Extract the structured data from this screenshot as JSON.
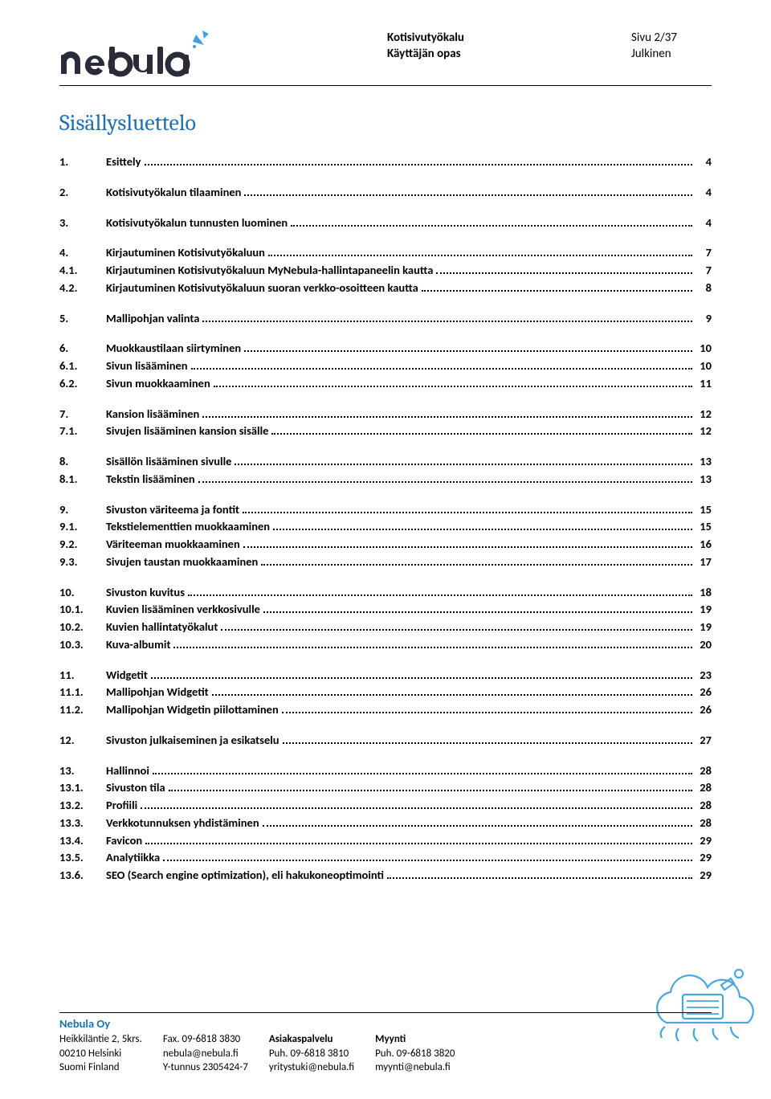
{
  "header": {
    "doc_title": "Kotisivutyökalu",
    "doc_subtitle": "Käyttäjän opas",
    "page_info": "Sivu 2/37",
    "classification": "Julkinen"
  },
  "logo": {
    "text": "nebula",
    "color_dark": "#2a2c3a",
    "color_blue": "#3fa4dd"
  },
  "title": "Sisällysluettelo",
  "toc": [
    {
      "items": [
        {
          "n": "1.",
          "t": "Esittely",
          "p": "4"
        }
      ]
    },
    {
      "items": [
        {
          "n": "2.",
          "t": "Kotisivutyökalun tilaaminen",
          "p": "4"
        }
      ]
    },
    {
      "items": [
        {
          "n": "3.",
          "t": "Kotisivutyökalun tunnusten luominen",
          "p": "4"
        }
      ]
    },
    {
      "items": [
        {
          "n": "4.",
          "t": "Kirjautuminen Kotisivutyökaluun",
          "p": "7"
        },
        {
          "n": "4.1.",
          "t": "Kirjautuminen Kotisivutyökaluun MyNebula-hallintapaneelin kautta",
          "p": "7"
        },
        {
          "n": "4.2.",
          "t": "Kirjautuminen Kotisivutyökaluun suoran verkko-osoitteen kautta",
          "p": "8"
        }
      ]
    },
    {
      "items": [
        {
          "n": "5.",
          "t": "Mallipohjan valinta",
          "p": "9"
        }
      ]
    },
    {
      "items": [
        {
          "n": "6.",
          "t": "Muokkaustilaan siirtyminen",
          "p": "10"
        },
        {
          "n": "6.1.",
          "t": "Sivun lisääminen",
          "p": "10"
        },
        {
          "n": "6.2.",
          "t": "Sivun muokkaaminen",
          "p": "11"
        }
      ]
    },
    {
      "items": [
        {
          "n": "7.",
          "t": "Kansion lisääminen",
          "p": "12"
        },
        {
          "n": "7.1.",
          "t": "Sivujen lisääminen kansion sisälle",
          "p": "12"
        }
      ]
    },
    {
      "items": [
        {
          "n": "8.",
          "t": "Sisällön lisääminen sivulle",
          "p": "13"
        },
        {
          "n": "8.1.",
          "t": "Tekstin lisääminen",
          "p": "13"
        }
      ]
    },
    {
      "items": [
        {
          "n": "9.",
          "t": "Sivuston väriteema ja fontit",
          "p": "15"
        },
        {
          "n": "9.1.",
          "t": "Tekstielementtien muokkaaminen",
          "p": "15"
        },
        {
          "n": "9.2.",
          "t": "Väriteeman muokkaaminen",
          "p": "16"
        },
        {
          "n": "9.3.",
          "t": "Sivujen taustan muokkaaminen",
          "p": "17"
        }
      ]
    },
    {
      "items": [
        {
          "n": "10.",
          "t": "Sivuston kuvitus",
          "p": "18"
        },
        {
          "n": "10.1.",
          "t": "Kuvien lisääminen verkkosivulle",
          "p": "19"
        },
        {
          "n": "10.2.",
          "t": "Kuvien hallintatyökalut",
          "p": "19"
        },
        {
          "n": "10.3.",
          "t": "Kuva-albumit",
          "p": "20"
        }
      ]
    },
    {
      "items": [
        {
          "n": "11.",
          "t": "Widgetit",
          "p": "23"
        },
        {
          "n": "11.1.",
          "t": "Mallipohjan Widgetit",
          "p": "26"
        },
        {
          "n": "11.2.",
          "t": "Mallipohjan Widgetin piilottaminen",
          "p": "26"
        }
      ]
    },
    {
      "items": [
        {
          "n": "12.",
          "t": "Sivuston julkaiseminen ja esikatselu",
          "p": "27"
        }
      ]
    },
    {
      "items": [
        {
          "n": "13.",
          "t": "Hallinnoi",
          "p": "28"
        },
        {
          "n": "13.1.",
          "t": "Sivuston tila",
          "p": "28"
        },
        {
          "n": "13.2.",
          "t": "Profiili",
          "p": "28"
        },
        {
          "n": "13.3.",
          "t": "Verkkotunnuksen yhdistäminen",
          "p": "28"
        },
        {
          "n": "13.4.",
          "t": "Favicon",
          "p": "29"
        },
        {
          "n": "13.5.",
          "t": "Analytiikka",
          "p": "29"
        },
        {
          "n": "13.6.",
          "t": "SEO (Search engine optimization), eli hakukoneoptimointi",
          "p": "29"
        }
      ]
    }
  ],
  "footer": {
    "company": "Nebula Oy",
    "cols": [
      [
        "Heikkiläntie 2, 5krs.",
        "00210 Helsinki",
        "Suomi Finland"
      ],
      [
        "Fax. 09-6818 3830",
        "nebula@nebula.fi",
        "Y-tunnus 2305424-7"
      ],
      [
        "Asiakaspalvelu",
        "Puh. 09-6818 3810",
        "yritystuki@nebula.fi"
      ],
      [
        "Myynti",
        "Puh. 09-6818 3820",
        "myynti@nebula.fi"
      ]
    ]
  },
  "colors": {
    "heading_blue": "#1f6fb4",
    "logo_blue": "#3fa4dd",
    "text": "#000000"
  }
}
